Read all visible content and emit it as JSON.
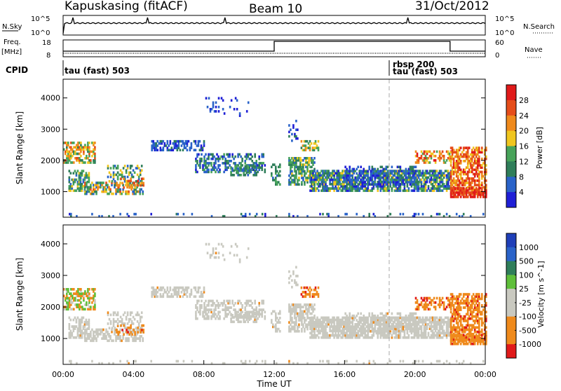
{
  "header": {
    "station": "Kapuskasing (fitACF)",
    "beam": "Beam 10",
    "date": "31/Oct/2012"
  },
  "labels": {
    "nsky": "N.Sky",
    "nsearch": "N.Search",
    "freq": "Freq.",
    "mhz": "[MHz]",
    "nave": "Nave",
    "cpid": "CPID",
    "e5_left": "10^5",
    "e0_left": "10^0",
    "e5_right": "10^5",
    "e0_right": "10^0",
    "freq_18": "18",
    "freq_8": "8",
    "nave_60": "60",
    "nave_0": "0"
  },
  "cpid": {
    "segment1": "tau (fast) 503",
    "segment2_top": "rbsp 200",
    "segment2_bottom": "tau (fast) 503"
  },
  "colors": {
    "power": [
      "#1f1fd6",
      "#2a63c9",
      "#2f7e5a",
      "#47a35a",
      "#f0c61f",
      "#ef8a1c",
      "#e54d1a",
      "#e01a1a"
    ],
    "velocity": [
      "#e01a1a",
      "#ef8a1c",
      "#ef8a1c",
      "#c9c9c0",
      "#c9c9c0",
      "#5fbf3a",
      "#2f7e5a",
      "#2a63c9",
      "#1f3fb8"
    ],
    "ground_scatter": "#c9c9c0"
  },
  "chart_data": [
    {
      "type": "line",
      "name": "noise-panel",
      "ylabel_left": "N.Sky",
      "ylabel_right": "N.Search",
      "x_range": [
        0,
        24
      ],
      "y_scale": "log",
      "y_ticks": [
        "10^0",
        "10^5"
      ]
    },
    {
      "type": "line",
      "name": "freq-nave-panel",
      "ylabel_left": "Freq. [MHz]",
      "ylabel_right": "Nave",
      "y_ticks_left": [
        8,
        18
      ],
      "y_ticks_right": [
        0,
        60
      ],
      "nave_steps": [
        [
          0,
          20
        ],
        [
          12,
          20
        ],
        [
          12,
          55
        ],
        [
          22,
          55
        ],
        [
          22,
          20
        ],
        [
          24,
          20
        ]
      ]
    },
    {
      "type": "heatmap",
      "name": "power",
      "ylabel": "Slant Range [km]",
      "y_ticks": [
        1000,
        2000,
        3000,
        4000
      ],
      "ylim": [
        180,
        4600
      ],
      "colorbar_label": "Power [dB]",
      "colorbar_ticks": [
        4,
        8,
        12,
        16,
        20,
        24,
        28
      ]
    },
    {
      "type": "heatmap",
      "name": "velocity",
      "ylabel": "Slant Range [km]",
      "xlabel": "Time UT",
      "y_ticks": [
        1000,
        2000,
        3000,
        4000
      ],
      "ylim": [
        180,
        4600
      ],
      "x_ticks": [
        "00:00",
        "04:00",
        "08:00",
        "12:00",
        "16:00",
        "20:00",
        "00:00"
      ],
      "colorbar_label": "Velocity [m s^-1]",
      "colorbar_ticks": [
        "1000",
        "500",
        "100",
        "25",
        "-25",
        "-100",
        "-500",
        "-1000"
      ]
    }
  ]
}
